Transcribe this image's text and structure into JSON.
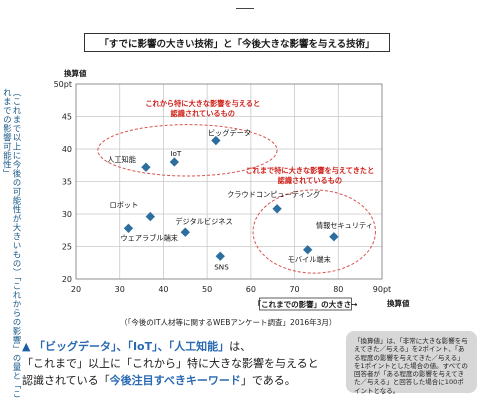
{
  "title": "「すでに影響の大きい技術」と「今後大きな影響を与える技術」",
  "y_axis_title": "換算値",
  "y_vertical_label": "（これまで以上に今後の可能性が大きいもの）「これからの影響」の量と「これまでの影響可能性」",
  "x_axis_title": "「これまでの影響」の大きさ→",
  "x_axis_title2": "換算値",
  "source_note": "（「今後のIT人材等に関するWEBアンケート調査」2016年3月）",
  "group_labels": {
    "upper": [
      "これから特に大きな影響を与えると",
      "認識されているもの"
    ],
    "lower": [
      "これまで特に大きな影響を与えてきたと",
      "認識されているもの"
    ]
  },
  "bullet": {
    "marker": "▲",
    "line1_a": "「ビッグデータ」、「IoT」、「人工知能」",
    "line1_b": "は、",
    "line2": "「これまで」以上に「これから」特に大きな影響を与えると",
    "line3_a": "認識されている「",
    "line3_b": "今後注目すべきキーワード",
    "line3_c": "」である。"
  },
  "callout_text": "「換算値」は、「非常に大きな影響を与えてきた／与える」を2ポイント、「ある程度の影響を与えてきた／与える」を1ポイントとした場合の値。すべての回答者が「ある程度の影響を与えてきた／与える」と回答した場合に100ポイントとなる。",
  "colors": {
    "marker": "#2e6e9e",
    "ellipse": "#d9534f",
    "group_text": "#d0201a",
    "highlight": "#2a6ab3"
  },
  "chart_data": {
    "type": "scatter",
    "xlim": [
      20,
      90
    ],
    "ylim": [
      20,
      50
    ],
    "x_ticks": [
      20,
      30,
      40,
      50,
      60,
      70,
      80,
      90
    ],
    "y_ticks": [
      20,
      25,
      30,
      35,
      40,
      45,
      50
    ],
    "x_tick_labels": [
      "20",
      "30",
      "40",
      "50",
      "60",
      "70",
      "80",
      "90pt"
    ],
    "y_tick_labels": [
      "20",
      "25",
      "30",
      "35",
      "40",
      "45",
      "50pt"
    ],
    "grid": true,
    "points": [
      {
        "label": "ビッグデータ",
        "x": 52,
        "y": 41.3
      },
      {
        "label": "IoT",
        "x": 42.5,
        "y": 38
      },
      {
        "label": "人工知能",
        "x": 36,
        "y": 37.2
      },
      {
        "label": "ロボット",
        "x": 37,
        "y": 29.6
      },
      {
        "label": "ウェアラブル端末",
        "x": 32,
        "y": 27.8
      },
      {
        "label": "デジタルビジネス",
        "x": 45,
        "y": 27.2
      },
      {
        "label": "SNS",
        "x": 53,
        "y": 23.5
      },
      {
        "label": "クラウドコンピューティング",
        "x": 66,
        "y": 30.8
      },
      {
        "label": "情報セキュリティ",
        "x": 79,
        "y": 26.5
      },
      {
        "label": "モバイル端末",
        "x": 73,
        "y": 24.5
      }
    ]
  }
}
